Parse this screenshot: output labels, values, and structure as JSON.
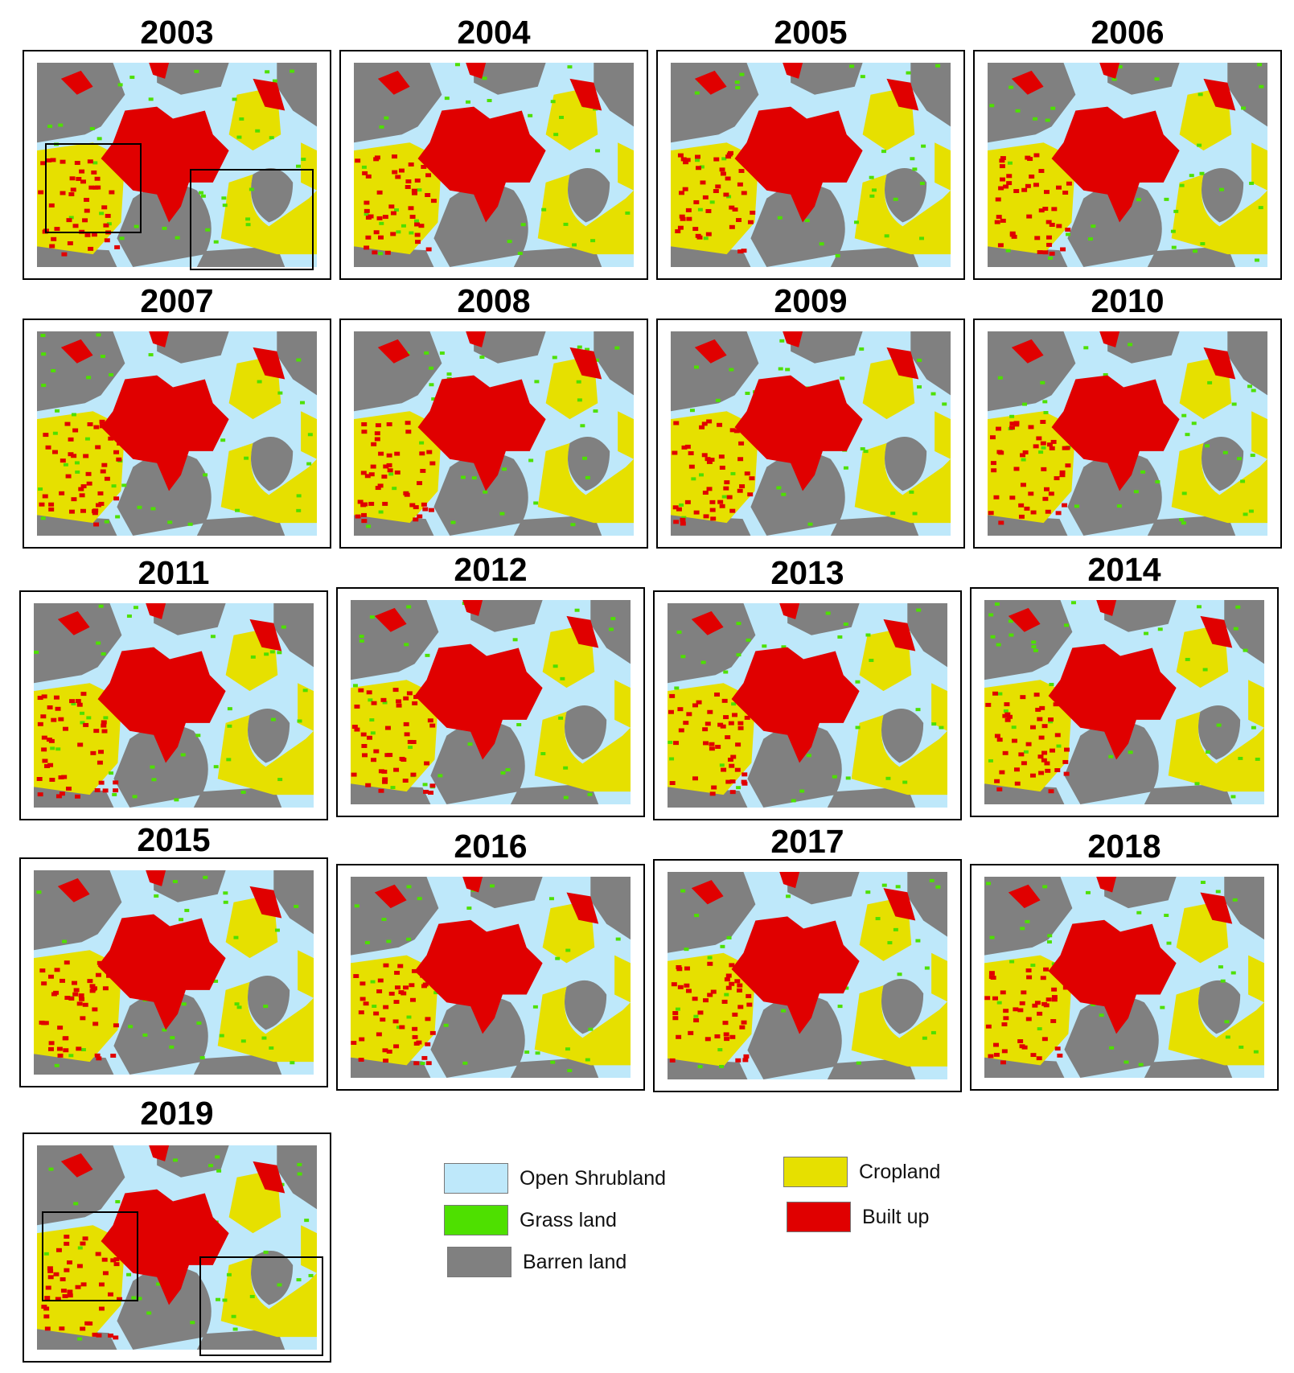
{
  "panels": [
    {
      "year": "2003"
    },
    {
      "year": "2004"
    },
    {
      "year": "2005"
    },
    {
      "year": "2006"
    },
    {
      "year": "2007"
    },
    {
      "year": "2008"
    },
    {
      "year": "2009"
    },
    {
      "year": "2010"
    },
    {
      "year": "2011"
    },
    {
      "year": "2012"
    },
    {
      "year": "2013"
    },
    {
      "year": "2014"
    },
    {
      "year": "2015"
    },
    {
      "year": "2016"
    },
    {
      "year": "2017"
    },
    {
      "year": "2018"
    },
    {
      "year": "2019"
    }
  ],
  "legend": {
    "items": [
      {
        "label": "Open Shrubland",
        "color": "#bee8fa"
      },
      {
        "label": "Grass land",
        "color": "#4ee000"
      },
      {
        "label": "Barren land",
        "color": "#808080"
      },
      {
        "label": "Cropland",
        "color": "#e6e000"
      },
      {
        "label": "Built up",
        "color": "#e00000"
      }
    ]
  },
  "colors": {
    "shrubland": "#bee8fa",
    "grassland": "#4ee000",
    "barren": "#808080",
    "cropland": "#e6e000",
    "builtup": "#e00000"
  }
}
